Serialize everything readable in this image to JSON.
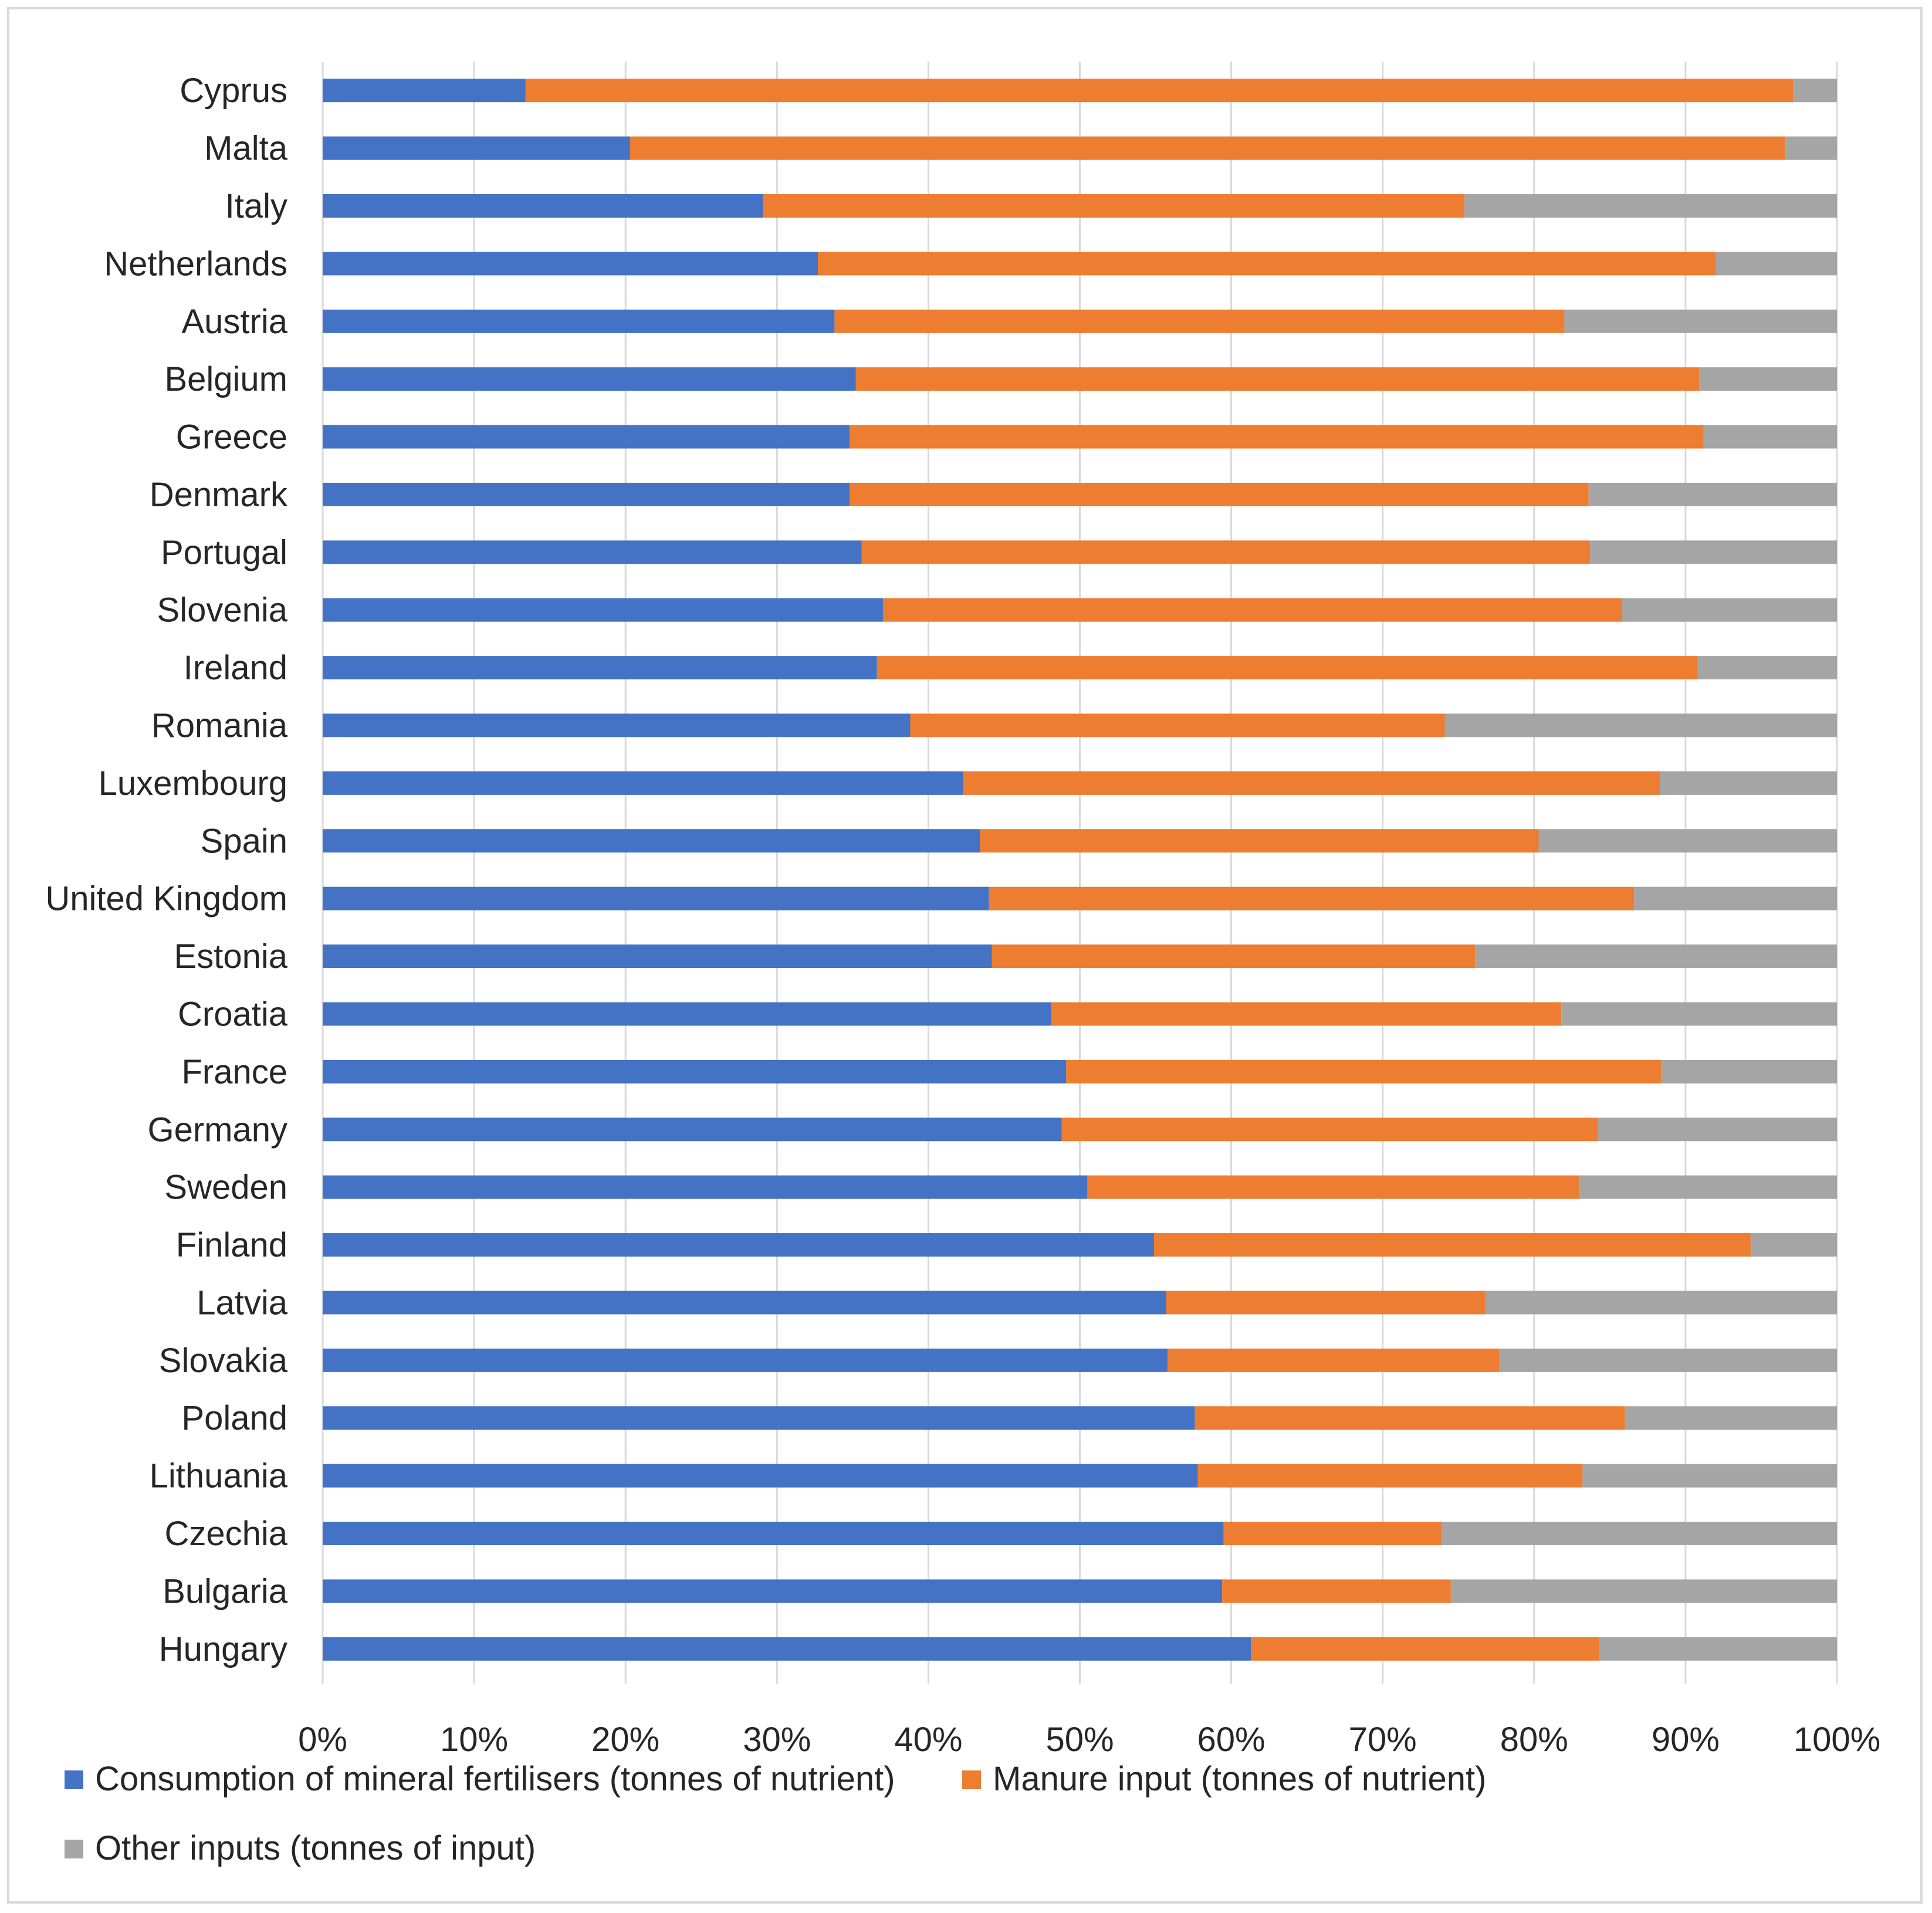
{
  "chart_data": {
    "type": "bar",
    "orientation": "horizontal",
    "stacking": "percent",
    "title": "",
    "xlabel": "",
    "ylabel": "",
    "xlim": [
      0,
      100
    ],
    "grid": true,
    "legend_position": "bottom-left",
    "x_ticks": [
      "0%",
      "10%",
      "20%",
      "30%",
      "40%",
      "50%",
      "60%",
      "70%",
      "80%",
      "90%",
      "100%"
    ],
    "categories": [
      "Cyprus",
      "Malta",
      "Italy",
      "Netherlands",
      "Austria",
      "Belgium",
      "Greece",
      "Denmark",
      "Portugal",
      "Slovenia",
      "Ireland",
      "Romania",
      "Luxembourg",
      "Spain",
      "United Kingdom",
      "Estonia",
      "Croatia",
      "France",
      "Germany",
      "Sweden",
      "Finland",
      "Latvia",
      "Slovakia",
      "Poland",
      "Lithuania",
      "Czechia",
      "Bulgaria",
      "Hungary"
    ],
    "series": [
      {
        "name": "Consumption of mineral fertilisers (tonnes of nutrient)",
        "color": "#4472c4",
        "values": [
          13.4,
          20.3,
          29.1,
          32.7,
          33.8,
          35.2,
          34.8,
          34.8,
          35.6,
          37.0,
          36.6,
          38.8,
          42.3,
          43.4,
          44.0,
          44.2,
          48.1,
          49.1,
          48.8,
          50.5,
          54.9,
          55.7,
          55.8,
          57.6,
          57.8,
          59.5,
          59.4,
          61.3
        ]
      },
      {
        "name": "Manure input (tonnes of nutrient)",
        "color": "#ed7d31",
        "values": [
          83.7,
          76.3,
          46.3,
          59.3,
          48.2,
          55.7,
          56.4,
          48.8,
          48.1,
          48.8,
          54.2,
          35.3,
          46.0,
          36.9,
          42.6,
          31.9,
          33.7,
          39.3,
          35.4,
          32.5,
          39.4,
          21.1,
          21.9,
          28.4,
          25.4,
          14.4,
          15.1,
          23.0
        ]
      },
      {
        "name": "Other inputs (tonnes of input)",
        "color": "#a5a5a5",
        "values": [
          2.9,
          3.4,
          24.6,
          8.0,
          18.0,
          9.1,
          8.8,
          16.4,
          16.3,
          14.2,
          9.2,
          25.9,
          11.7,
          19.7,
          13.4,
          23.9,
          18.2,
          11.6,
          15.8,
          17.0,
          5.7,
          23.2,
          22.3,
          14.0,
          16.8,
          26.1,
          25.5,
          15.7
        ]
      }
    ]
  }
}
